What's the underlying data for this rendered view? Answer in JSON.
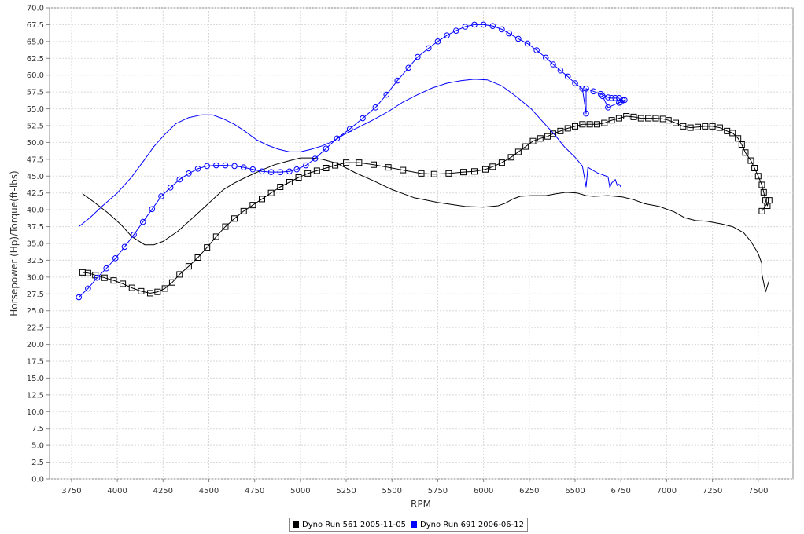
{
  "chart_data": {
    "type": "line",
    "title": "",
    "xlabel": "RPM",
    "ylabel": "Horsepower (Hp)/Torque(ft-lbs)",
    "xlim": [
      3630,
      7690
    ],
    "ylim": [
      0,
      70
    ],
    "x_ticks": [
      3750,
      4000,
      4250,
      4500,
      4750,
      5000,
      5250,
      5500,
      5750,
      6000,
      6250,
      6500,
      6750,
      7000,
      7250,
      7500
    ],
    "y_ticks": [
      0.0,
      2.5,
      5.0,
      7.5,
      10.0,
      12.5,
      15.0,
      17.5,
      20.0,
      22.5,
      25.0,
      27.5,
      30.0,
      32.5,
      35.0,
      37.5,
      40.0,
      42.5,
      45.0,
      47.5,
      50.0,
      52.5,
      55.0,
      57.5,
      60.0,
      62.5,
      65.0,
      67.5,
      70.0
    ],
    "grid": true,
    "legend_position": "bottom-center",
    "series": [
      {
        "name": "Dyno Run 561 2005-11-05",
        "color": "#000000",
        "measure": "horsepower",
        "marker": "square",
        "x": [
          3810,
          3840,
          3880,
          3930,
          3980,
          4030,
          4080,
          4130,
          4180,
          4220,
          4260,
          4300,
          4340,
          4390,
          4440,
          4490,
          4540,
          4590,
          4640,
          4690,
          4740,
          4790,
          4840,
          4890,
          4940,
          4990,
          5040,
          5090,
          5140,
          5190,
          5250,
          5320,
          5400,
          5480,
          5560,
          5660,
          5730,
          5810,
          5890,
          5950,
          6010,
          6050,
          6100,
          6150,
          6190,
          6230,
          6270,
          6310,
          6350,
          6380,
          6420,
          6460,
          6500,
          6540,
          6580,
          6620,
          6660,
          6700,
          6740,
          6780,
          6820,
          6860,
          6900,
          6940,
          6980,
          7010,
          7050,
          7090,
          7130,
          7170,
          7210,
          7250,
          7290,
          7330,
          7360,
          7390,
          7410,
          7430,
          7460,
          7480,
          7500,
          7520,
          7530,
          7540,
          7550,
          7560,
          7520
        ],
        "y": [
          30.7,
          30.6,
          30.3,
          29.9,
          29.5,
          29.0,
          28.4,
          27.9,
          27.6,
          27.8,
          28.3,
          29.2,
          30.4,
          31.6,
          32.9,
          34.4,
          36.0,
          37.5,
          38.7,
          39.8,
          40.7,
          41.6,
          42.5,
          43.4,
          44.1,
          44.8,
          45.4,
          45.8,
          46.2,
          46.6,
          47.0,
          47.0,
          46.7,
          46.3,
          45.9,
          45.4,
          45.3,
          45.4,
          45.6,
          45.7,
          46.0,
          46.4,
          47.0,
          47.8,
          48.6,
          49.4,
          50.2,
          50.6,
          50.9,
          51.3,
          51.7,
          52.1,
          52.4,
          52.7,
          52.7,
          52.7,
          52.9,
          53.3,
          53.6,
          53.9,
          53.8,
          53.6,
          53.6,
          53.6,
          53.5,
          53.3,
          52.9,
          52.4,
          52.2,
          52.3,
          52.4,
          52.4,
          52.2,
          51.7,
          51.4,
          50.6,
          49.7,
          48.5,
          47.3,
          46.2,
          45.0,
          43.7,
          42.6,
          41.4,
          40.6,
          41.4,
          39.8
        ]
      },
      {
        "name": "Dyno Run 561 2005-11-05",
        "color": "#000000",
        "measure": "torque",
        "marker": "none",
        "x": [
          3810,
          3880,
          3950,
          4020,
          4080,
          4150,
          4200,
          4250,
          4330,
          4420,
          4500,
          4580,
          4640,
          4700,
          4780,
          4860,
          4940,
          5000,
          5060,
          5120,
          5200,
          5300,
          5400,
          5500,
          5620,
          5750,
          5900,
          6000,
          6080,
          6120,
          6160,
          6200,
          6260,
          6340,
          6400,
          6450,
          6510,
          6560,
          6600,
          6680,
          6760,
          6820,
          6880,
          6960,
          7040,
          7100,
          7160,
          7220,
          7300,
          7360,
          7420,
          7460,
          7500,
          7520,
          7520,
          7540,
          7560
        ],
        "y": [
          42.4,
          41.0,
          39.5,
          37.8,
          36.0,
          34.8,
          34.8,
          35.3,
          36.8,
          39.0,
          41.0,
          43.0,
          44.0,
          44.8,
          45.8,
          46.7,
          47.3,
          47.7,
          47.7,
          47.5,
          46.9,
          45.5,
          44.3,
          43.0,
          41.8,
          41.1,
          40.5,
          40.4,
          40.6,
          41.0,
          41.6,
          42.0,
          42.1,
          42.1,
          42.4,
          42.6,
          42.5,
          42.1,
          42.0,
          42.1,
          41.9,
          41.5,
          40.9,
          40.5,
          39.7,
          38.8,
          38.4,
          38.3,
          37.9,
          37.5,
          36.6,
          35.3,
          33.5,
          32.0,
          30.5,
          27.8,
          29.5
        ]
      },
      {
        "name": "Dyno Run 691 2006-06-12",
        "color": "#0000ff",
        "measure": "horsepower",
        "marker": "circle",
        "x": [
          3790,
          3840,
          3890,
          3940,
          3990,
          4040,
          4090,
          4140,
          4190,
          4240,
          4290,
          4340,
          4390,
          4440,
          4490,
          4540,
          4590,
          4640,
          4690,
          4740,
          4790,
          4840,
          4890,
          4940,
          4980,
          5030,
          5080,
          5140,
          5200,
          5270,
          5340,
          5410,
          5470,
          5530,
          5590,
          5640,
          5700,
          5750,
          5800,
          5850,
          5900,
          5950,
          6000,
          6050,
          6100,
          6140,
          6190,
          6240,
          6290,
          6340,
          6380,
          6420,
          6460,
          6500,
          6540,
          6560,
          6560,
          6600,
          6640,
          6680,
          6700,
          6720,
          6740,
          6750,
          6760,
          6740,
          6770,
          6680,
          6650
        ],
        "y": [
          27.0,
          28.3,
          29.9,
          31.3,
          32.8,
          34.5,
          36.3,
          38.2,
          40.1,
          42.0,
          43.3,
          44.5,
          45.4,
          46.1,
          46.5,
          46.6,
          46.6,
          46.5,
          46.3,
          46.0,
          45.7,
          45.6,
          45.6,
          45.7,
          46.0,
          46.6,
          47.6,
          49.1,
          50.6,
          52.0,
          53.6,
          55.2,
          57.1,
          59.2,
          61.1,
          62.7,
          64.0,
          65.0,
          65.9,
          66.6,
          67.2,
          67.5,
          67.5,
          67.3,
          66.8,
          66.2,
          65.4,
          64.7,
          63.7,
          62.6,
          61.6,
          60.7,
          59.8,
          58.8,
          58.0,
          54.3,
          58.0,
          57.6,
          57.2,
          56.7,
          56.6,
          56.6,
          56.6,
          56.0,
          56.3,
          55.9,
          56.3,
          55.2,
          56.9
        ]
      },
      {
        "name": "Dyno Run 691 2006-06-12",
        "color": "#0000ff",
        "measure": "torque",
        "marker": "none",
        "x": [
          3790,
          3850,
          3920,
          4000,
          4080,
          4150,
          4200,
          4260,
          4320,
          4390,
          4460,
          4520,
          4580,
          4640,
          4700,
          4760,
          4820,
          4880,
          4940,
          5000,
          5060,
          5120,
          5180,
          5240,
          5320,
          5400,
          5480,
          5560,
          5640,
          5720,
          5800,
          5880,
          5950,
          6020,
          6100,
          6180,
          6260,
          6330,
          6390,
          6440,
          6500,
          6540,
          6560,
          6570,
          6620,
          6680,
          6690,
          6700,
          6720,
          6730,
          6740,
          6750
        ],
        "y": [
          37.5,
          38.8,
          40.6,
          42.5,
          44.9,
          47.5,
          49.4,
          51.2,
          52.8,
          53.7,
          54.1,
          54.1,
          53.5,
          52.7,
          51.6,
          50.4,
          49.6,
          49.0,
          48.6,
          48.6,
          49.0,
          49.5,
          50.2,
          51.2,
          52.3,
          53.4,
          54.6,
          56.0,
          57.1,
          58.1,
          58.8,
          59.2,
          59.4,
          59.3,
          58.4,
          56.8,
          55.0,
          52.9,
          51.1,
          49.4,
          47.8,
          46.5,
          43.4,
          46.3,
          45.5,
          44.9,
          43.3,
          44.0,
          44.5,
          43.6,
          43.8,
          43.4
        ]
      }
    ]
  }
}
